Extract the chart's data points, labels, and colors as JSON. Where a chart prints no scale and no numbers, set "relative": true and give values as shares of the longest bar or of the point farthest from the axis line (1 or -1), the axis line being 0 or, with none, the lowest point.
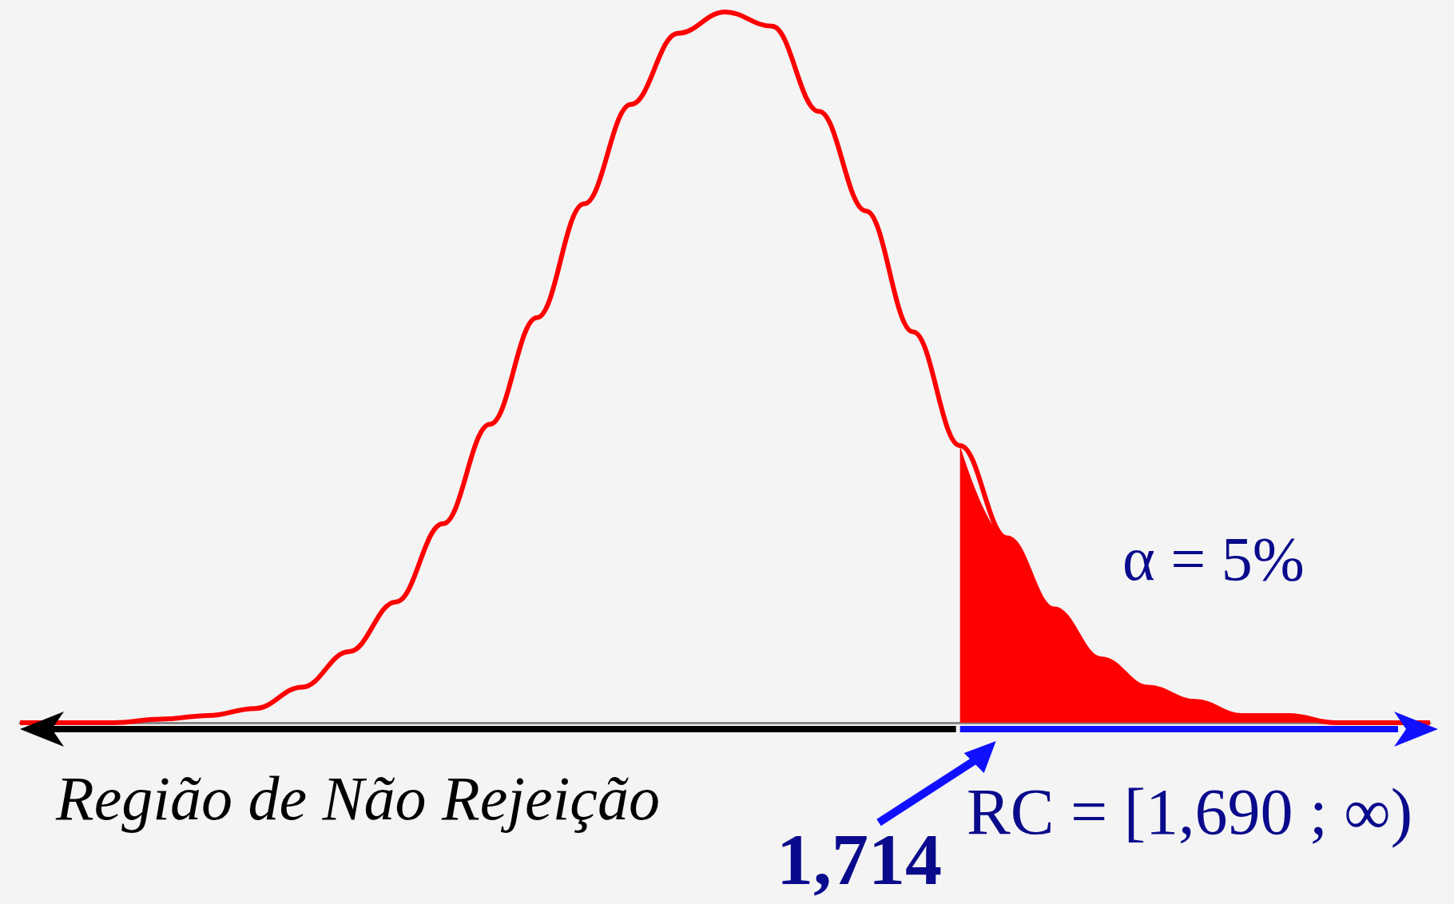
{
  "chart_data": {
    "type": "line",
    "relative": true,
    "marker": "none",
    "grid": false,
    "categories": [
      null,
      null,
      null,
      null,
      null,
      null,
      null,
      null,
      null,
      null,
      null,
      null,
      null,
      null,
      null,
      null,
      null,
      null,
      null,
      null,
      null,
      null,
      null,
      null,
      null,
      null,
      null,
      null,
      null,
      null,
      null
    ],
    "series": [
      {
        "color": "#ff0000",
        "values": [
          0,
          0,
          0,
          0.005,
          0.01,
          0.02,
          0.05,
          0.1,
          0.17,
          0.28,
          0.42,
          0.57,
          0.73,
          0.87,
          0.97,
          1,
          0.98,
          0.86,
          0.72,
          0.55,
          0.39,
          0.26,
          0.16,
          0.09,
          0.05,
          0.03,
          0.01,
          0.01,
          0,
          0,
          0
        ]
      },
      {
        "type": "area",
        "color": "#ff0000",
        "values": [
          null,
          null,
          null,
          null,
          null,
          null,
          null,
          null,
          null,
          null,
          null,
          null,
          null,
          null,
          null,
          null,
          null,
          null,
          null,
          null,
          0.39,
          0.26,
          0.16,
          0.09,
          0.05,
          0.03,
          0.01,
          0.01,
          0,
          0,
          0
        ]
      }
    ],
    "annotations": [
      "Região de Não Rejeição",
      "α = 5%",
      "RC = [1,690 ; ∞)",
      "1,714"
    ]
  }
}
